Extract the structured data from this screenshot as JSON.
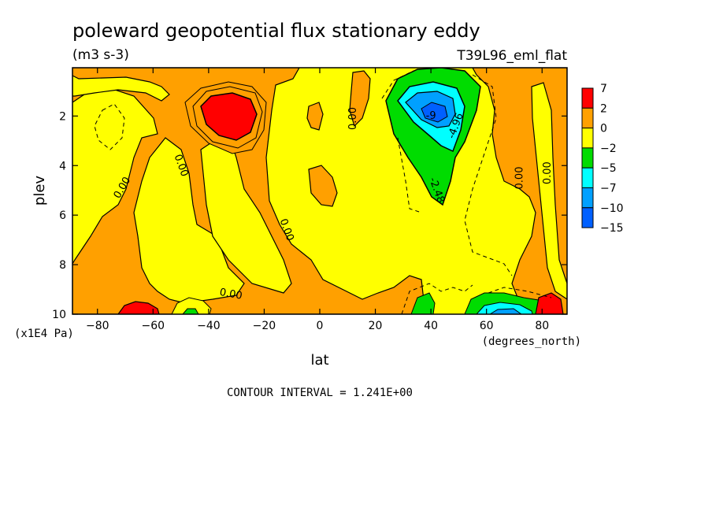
{
  "chart_data": {
    "type": "heatmap",
    "title": "poleward geopotential flux stationary eddy",
    "units": "(m3 s-3)",
    "run_label": "T39L96_eml_flat",
    "xlabel": "lat",
    "x_units": "(degrees_north)",
    "ylabel": "plev",
    "y_units": "(x1E4 Pa)",
    "x_ticks": [
      -80,
      -60,
      -40,
      -20,
      0,
      20,
      40,
      60,
      80
    ],
    "y_ticks": [
      2,
      4,
      6,
      8,
      10
    ],
    "xlim": [
      -89,
      89
    ],
    "ylim": [
      10,
      0.05
    ],
    "contour_interval_text": "CONTOUR INTERVAL = 1.241E+00",
    "colorbar": {
      "levels": [
        "7",
        "2",
        "0",
        "-2",
        "-5",
        "-7",
        "-10",
        "-15"
      ],
      "colors": [
        "#ff0000",
        "#ffa000",
        "#ffff00",
        "#00dc00",
        "#00ffff",
        "#00a0ff",
        "#0060ff"
      ]
    },
    "contour_labels": [
      {
        "text": "0.00",
        "lat": -71,
        "plev": 4.9,
        "rotate": -60
      },
      {
        "text": "0.00",
        "lat": -50,
        "plev": 4.0,
        "rotate": 70
      },
      {
        "text": "0.00",
        "lat": 12,
        "plev": 2.1,
        "rotate": -90
      },
      {
        "text": "0.00",
        "lat": -12,
        "plev": 6.6,
        "rotate": 70
      },
      {
        "text": "0.00",
        "lat": -32,
        "plev": 9.2,
        "rotate": 10
      },
      {
        "text": "0.00",
        "lat": 72,
        "plev": 4.5,
        "rotate": -90
      },
      {
        "text": "0.00",
        "lat": 82,
        "plev": 4.3,
        "rotate": -90
      },
      {
        "text": "-4.96",
        "lat": 49,
        "plev": 2.4,
        "rotate": -70
      },
      {
        "text": "-2.48",
        "lat": 42,
        "plev": 5.0,
        "rotate": 70
      },
      {
        "text": "-9",
        "lat": 40,
        "plev": 2.0,
        "rotate": 0
      }
    ]
  }
}
